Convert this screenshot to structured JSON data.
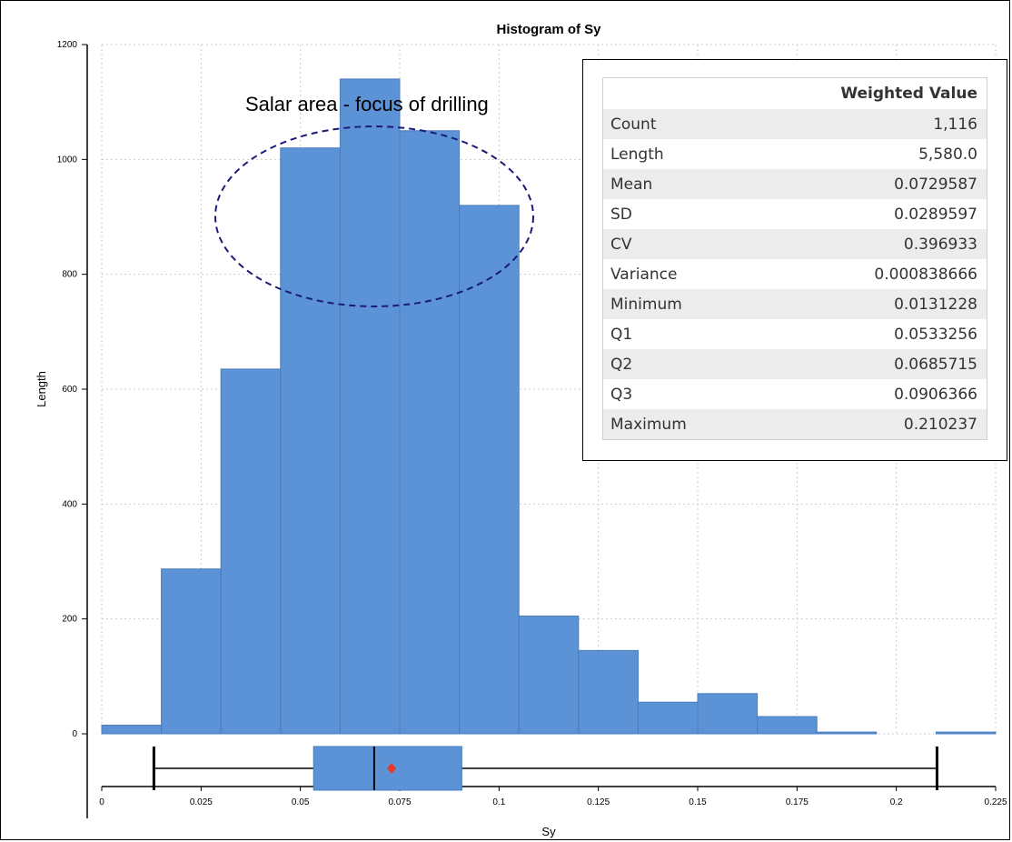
{
  "chart_data": {
    "type": "bar",
    "title": "Histogram of Sy",
    "xlabel": "Sy",
    "ylabel": "Length",
    "xlim": [
      0,
      0.225
    ],
    "ylim": [
      0,
      1200
    ],
    "x_ticks": [
      "0",
      "0.025",
      "0.05",
      "0.075",
      "0.1",
      "0.125",
      "0.15",
      "0.175",
      "0.2",
      "0.225"
    ],
    "y_ticks": [
      "0",
      "200",
      "400",
      "600",
      "800",
      "1000",
      "1200"
    ],
    "bin_width": 0.015,
    "bins": [
      {
        "start": 0.0,
        "value": 15
      },
      {
        "start": 0.015,
        "value": 287
      },
      {
        "start": 0.03,
        "value": 635
      },
      {
        "start": 0.045,
        "value": 1020
      },
      {
        "start": 0.06,
        "value": 1140
      },
      {
        "start": 0.075,
        "value": 1050
      },
      {
        "start": 0.09,
        "value": 920
      },
      {
        "start": 0.105,
        "value": 205
      },
      {
        "start": 0.12,
        "value": 145
      },
      {
        "start": 0.135,
        "value": 55
      },
      {
        "start": 0.15,
        "value": 70
      },
      {
        "start": 0.165,
        "value": 30
      },
      {
        "start": 0.18,
        "value": 3
      },
      {
        "start": 0.21,
        "value": 3
      }
    ],
    "grid": true,
    "bar_color": "#5b93d6",
    "boxplot": {
      "min": 0.0131228,
      "q1": 0.0533256,
      "median": 0.0685715,
      "q3": 0.0906366,
      "max": 0.210237,
      "mean": 0.0729587,
      "box_color": "#5b93d6",
      "mean_color": "#e8392b"
    },
    "annotation": {
      "text": "Salar area - focus of drilling",
      "color": "#1a1a7a"
    }
  },
  "stats": {
    "header": "Weighted Value",
    "rows": [
      {
        "label": "Count",
        "value": "1,116"
      },
      {
        "label": "Length",
        "value": "5,580.0"
      },
      {
        "label": "Mean",
        "value": "0.0729587"
      },
      {
        "label": "SD",
        "value": "0.0289597"
      },
      {
        "label": "CV",
        "value": "0.396933"
      },
      {
        "label": "Variance",
        "value": "0.000838666"
      },
      {
        "label": "Minimum",
        "value": "0.0131228"
      },
      {
        "label": "Q1",
        "value": "0.0533256"
      },
      {
        "label": "Q2",
        "value": "0.0685715"
      },
      {
        "label": "Q3",
        "value": "0.0906366"
      },
      {
        "label": "Maximum",
        "value": "0.210237"
      }
    ]
  }
}
